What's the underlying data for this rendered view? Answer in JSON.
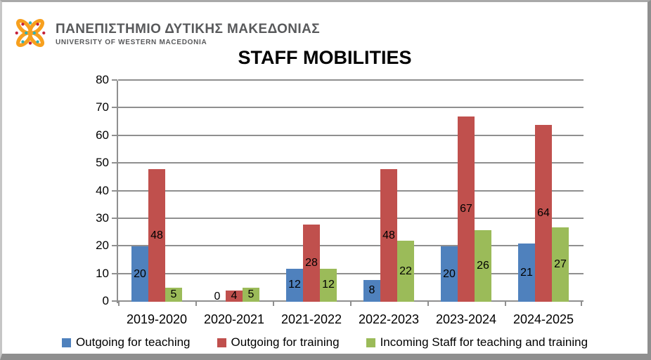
{
  "brand": {
    "name_greek": "ΠΑΝΕΠΙΣΤΗΜΙΟ ΔΥΤΙΚΗΣ ΜΑΚΕΔΟΝΙΑΣ",
    "name_english": "UNIVERSITY OF WESTERN MACEDONIA",
    "logo_colors": {
      "ribbon_orange": "#F7A01E",
      "dot_teal": "#2FAFB7",
      "dot_red": "#C52038",
      "text_gray": "#58595B"
    }
  },
  "chart_data": {
    "type": "bar",
    "title": "STAFF MOBILITIES",
    "categories": [
      "2019-2020",
      "2020-2021",
      "2021-2022",
      "2022-2023",
      "2023-2024",
      "2024-2025"
    ],
    "series": [
      {
        "name": "Outgoing for teaching",
        "color": "#4F81BD",
        "values": [
          20,
          0,
          12,
          8,
          20,
          21
        ]
      },
      {
        "name": "Outgoing for training",
        "color": "#C0504D",
        "values": [
          48,
          4,
          28,
          48,
          67,
          64
        ]
      },
      {
        "name": "Incoming Staff for teaching and training",
        "color": "#9BBB59",
        "values": [
          5,
          5,
          12,
          22,
          26,
          27
        ]
      }
    ],
    "xlabel": "",
    "ylabel": "",
    "ylim": [
      0,
      80
    ],
    "yticks": [
      0,
      10,
      20,
      30,
      40,
      50,
      60,
      70,
      80
    ],
    "grid": true,
    "gridline_color": "#8F8F8F",
    "data_labels": "inside-center",
    "legend_position": "bottom"
  }
}
